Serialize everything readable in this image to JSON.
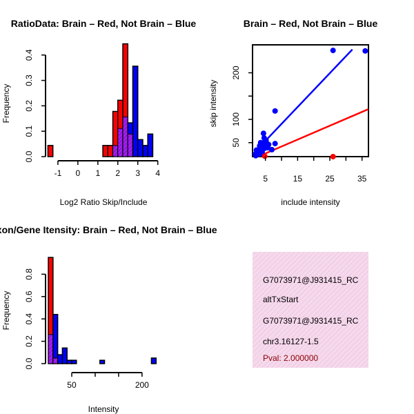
{
  "colors": {
    "brain": "#ff0000",
    "not_brain": "#0000ff",
    "overlap": "#a020f0",
    "info_bg": "#f5d9ec",
    "info_hatch": "#ecb6d9",
    "pval": "#8b0000"
  },
  "chart_data": [
    {
      "id": "ratio_hist",
      "type": "histogram",
      "title": "RatioData: Brain – Red, Not Brain – Blue",
      "xlabel": "Log2 Ratio Skip/Include",
      "ylabel": "Frequency",
      "xlim": [
        -1.55,
        4.15
      ],
      "ylim": [
        0,
        0.44
      ],
      "xticks": [
        -1,
        0,
        1,
        2,
        3,
        4
      ],
      "yticks": [
        0.0,
        0.1,
        0.2,
        0.3,
        0.4
      ],
      "bin_edges": [
        -1.5,
        -1.25,
        -1.0,
        -0.75,
        -0.5,
        -0.25,
        0.0,
        0.25,
        0.5,
        0.75,
        1.0,
        1.25,
        1.5,
        1.75,
        2.0,
        2.25,
        2.5,
        2.75,
        3.0,
        3.25,
        3.5,
        3.75,
        4.0
      ],
      "series": [
        {
          "name": "Brain",
          "color": "red",
          "values": [
            0.044,
            0,
            0,
            0,
            0,
            0,
            0,
            0,
            0,
            0,
            0,
            0.044,
            0.044,
            0.178,
            0.222,
            0.444,
            0.089,
            0,
            0,
            0,
            0,
            0
          ]
        },
        {
          "name": "Not Brain",
          "color": "blue",
          "values": [
            0,
            0,
            0,
            0,
            0,
            0,
            0,
            0,
            0,
            0,
            0,
            0,
            0,
            0.044,
            0.111,
            0.156,
            0.133,
            0.356,
            0.067,
            0.044,
            0.089,
            0
          ]
        }
      ]
    },
    {
      "id": "scatter",
      "type": "scatter",
      "title": "Brain – Red, Not Brain – Blue",
      "xlabel": "include intensity",
      "ylabel": "skip intensity",
      "xlim": [
        1,
        37
      ],
      "ylim": [
        20,
        260
      ],
      "xticks": [
        5,
        15,
        25,
        35
      ],
      "yticks": [
        50,
        100,
        200
      ],
      "series": [
        {
          "name": "Not Brain",
          "color": "blue",
          "points": [
            [
              2,
              22
            ],
            [
              2.5,
              25
            ],
            [
              3,
              30
            ],
            [
              3.2,
              28
            ],
            [
              3.5,
              35
            ],
            [
              3.8,
              40
            ],
            [
              4,
              32
            ],
            [
              4.2,
              45
            ],
            [
              4.5,
              50
            ],
            [
              4.8,
              38
            ],
            [
              5,
              42
            ],
            [
              5.2,
              55
            ],
            [
              5.5,
              48
            ],
            [
              4.6,
              60
            ],
            [
              4.4,
              70
            ],
            [
              3.5,
              50
            ],
            [
              6,
              46
            ],
            [
              7,
              35
            ],
            [
              8,
              48
            ],
            [
              8,
              118
            ],
            [
              4,
              27
            ],
            [
              2.8,
              33
            ],
            [
              5.8,
              39
            ],
            [
              3.2,
              43
            ],
            [
              26,
              248
            ],
            [
              36,
              247
            ],
            [
              2.2,
              34
            ],
            [
              3.6,
              26
            ]
          ]
        },
        {
          "name": "Brain",
          "color": "red",
          "points": [
            [
              26,
              20
            ],
            [
              4.8,
              21
            ]
          ]
        }
      ],
      "fits": [
        {
          "name": "Not Brain fit",
          "color": "blue",
          "x": [
            1,
            32
          ],
          "y": [
            25,
            250
          ]
        },
        {
          "name": "Brain fit",
          "color": "red",
          "x": [
            1,
            37
          ],
          "y": [
            15,
            122
          ]
        }
      ]
    },
    {
      "id": "intensity_hist",
      "type": "histogram",
      "title": "Exon/Gene Itensity: Brain – Red, Not Brain – Blue",
      "xlabel": "Intensity",
      "ylabel": "Frequency",
      "xlim": [
        -3,
        240
      ],
      "ylim": [
        0,
        1.0
      ],
      "xticks": [
        50,
        100,
        150,
        200
      ],
      "tick_labels": [
        "50",
        "",
        "",
        "200"
      ],
      "yticks": [
        0.0,
        0.2,
        0.4,
        0.6,
        0.8
      ],
      "bin_edges": [
        0,
        10,
        20,
        30,
        40,
        50,
        60,
        70,
        80,
        90,
        100,
        110,
        120,
        130,
        140,
        150,
        160,
        170,
        180,
        190,
        200,
        210,
        220,
        230
      ],
      "series": [
        {
          "name": "Brain",
          "color": "red",
          "values": [
            0.95,
            0.05,
            0,
            0,
            0,
            0,
            0,
            0,
            0,
            0,
            0,
            0,
            0,
            0,
            0,
            0,
            0,
            0,
            0,
            0,
            0,
            0,
            0
          ]
        },
        {
          "name": "Not Brain",
          "color": "blue",
          "values": [
            0.26,
            0.44,
            0.08,
            0.14,
            0.03,
            0.03,
            0,
            0,
            0,
            0,
            0,
            0.03,
            0,
            0,
            0,
            0,
            0,
            0,
            0,
            0,
            0,
            0,
            0.05
          ]
        }
      ]
    }
  ],
  "info_panel": {
    "line1": "G7073971@J931415_RC",
    "line2": "altTxStart",
    "line3": "G7073971@J931415_RC",
    "line4": "chr3.16127-1.5",
    "pval": "Pval: 2.000000"
  }
}
